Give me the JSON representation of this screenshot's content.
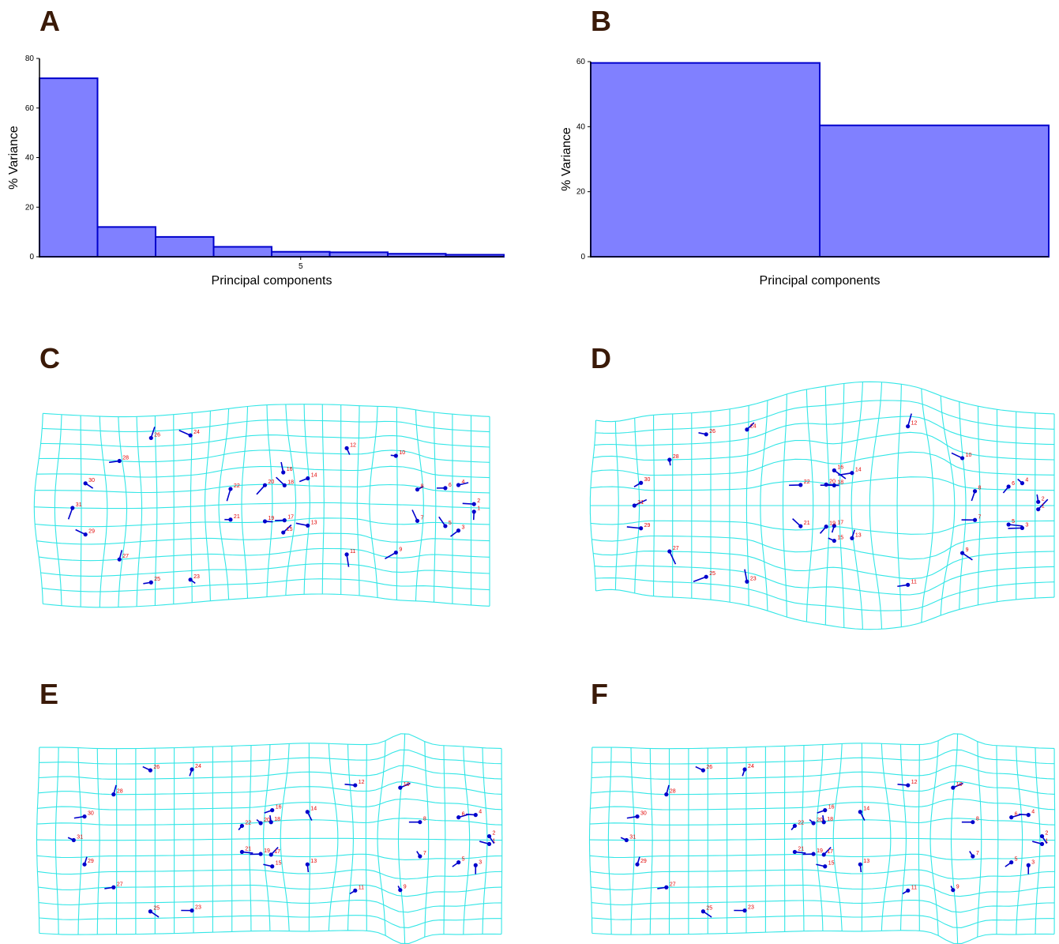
{
  "panels": {
    "a": "A",
    "b": "B",
    "c": "C",
    "d": "D",
    "e": "E",
    "f": "F"
  },
  "colors": {
    "bar_fill": "#8080ff",
    "bar_stroke": "#0000cc",
    "grid": "#33e6e6",
    "vector": "#0000cc",
    "landmark_label": "#e00000",
    "letter": "#3a1a08"
  },
  "chart_data": [
    {
      "type": "bar",
      "panel": "A",
      "categories": [
        "1",
        "2",
        "3",
        "4",
        "5",
        "6",
        "7",
        "8"
      ],
      "values": [
        72,
        12,
        8,
        4,
        2,
        1.8,
        1.2,
        0.8
      ],
      "ylabel": "% Variance",
      "xlabel": "Principal components",
      "ylim": [
        0,
        80
      ],
      "yticks": [
        "0",
        "20",
        "40",
        "60",
        "80"
      ],
      "xticks": [
        "5"
      ],
      "grid": false
    },
    {
      "type": "bar",
      "panel": "B",
      "categories": [
        "1",
        "2"
      ],
      "values": [
        59.6,
        40.4
      ],
      "ylabel": "% Variance",
      "xlabel": "Principal components",
      "ylim": [
        0,
        60
      ],
      "yticks": [
        "0",
        "20",
        "40",
        "60"
      ],
      "xticks": [],
      "grid": false
    }
  ],
  "landmark_labels": [
    "1",
    "2",
    "3",
    "4",
    "5",
    "6",
    "7",
    "8",
    "9",
    "10",
    "11",
    "12",
    "13",
    "14",
    "15",
    "16",
    "17",
    "18",
    "19",
    "20",
    "21",
    "22",
    "23",
    "24",
    "25",
    "26",
    "27",
    "28",
    "29",
    "30",
    "31"
  ]
}
